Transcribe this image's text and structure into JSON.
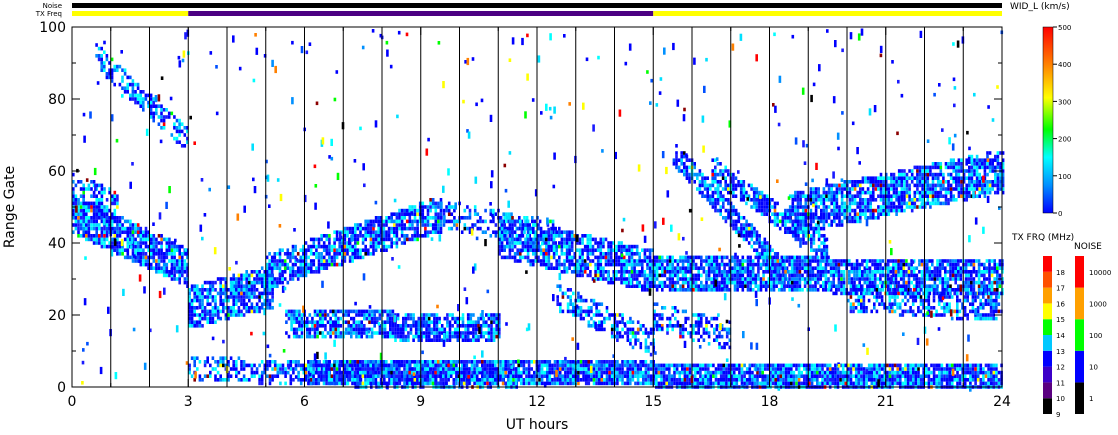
{
  "chart_data": {
    "type": "heatmap",
    "xlabel": "UT hours",
    "ylabel": "Range Gate",
    "xlim": [
      0,
      24
    ],
    "ylim": [
      0,
      100
    ],
    "x_ticks": [
      "0",
      "3",
      "6",
      "9",
      "12",
      "15",
      "18",
      "21",
      "24"
    ],
    "y_ticks": [
      "0",
      "20",
      "40",
      "60",
      "80",
      "100"
    ],
    "status_rows": [
      {
        "label": "Noise",
        "segments": [
          {
            "start": 0,
            "end": 24,
            "color": "#000000"
          }
        ]
      },
      {
        "label": "TX Freq",
        "segments": [
          {
            "start": 0,
            "end": 3,
            "color": "#ffff00"
          },
          {
            "start": 3,
            "end": 15,
            "color": "#4b0082"
          },
          {
            "start": 15,
            "end": 24,
            "color": "#ffff00"
          }
        ]
      }
    ],
    "main_colorbar": {
      "label": "WID_L (km/s)",
      "ticks": [
        "0",
        "100",
        "200",
        "300",
        "400",
        "500"
      ],
      "stops": [
        "#0000ff",
        "#0090ff",
        "#00ffff",
        "#00ff00",
        "#ffff00",
        "#ff8000",
        "#ff0000"
      ]
    },
    "freq_colorbar": {
      "label": "TX FRQ (MHz)",
      "ticks": [
        "9",
        "10",
        "11",
        "12",
        "13",
        "14",
        "15",
        "16",
        "17",
        "18"
      ],
      "colors": [
        "#000000",
        "#5a0080",
        "#3c00c8",
        "#0000ff",
        "#00c8ff",
        "#00ff00",
        "#ffff00",
        "#ffa000",
        "#ff5000",
        "#ff0000"
      ]
    },
    "noise_colorbar": {
      "label": "NOISE",
      "ticks": [
        "1",
        "10",
        "100",
        "1000",
        "10000"
      ],
      "colors": [
        "#000000",
        "#0000ff",
        "#00ff00",
        "#ffa000",
        "#ff0000"
      ]
    },
    "bands": [
      {
        "t0": 0.0,
        "t1": 3.0,
        "g0": 48,
        "g1": 33,
        "h": 9,
        "d": 0.85
      },
      {
        "t0": 0.0,
        "t1": 1.2,
        "g0": 55,
        "g1": 50,
        "h": 7,
        "d": 0.55
      },
      {
        "t0": 0.6,
        "t1": 3.0,
        "g0": 92,
        "g1": 68,
        "h": 5,
        "d": 0.55
      },
      {
        "t0": 3.0,
        "t1": 5.2,
        "g0": 22,
        "g1": 28,
        "h": 10,
        "d": 0.85
      },
      {
        "t0": 5.0,
        "t1": 9.5,
        "g0": 32,
        "g1": 48,
        "h": 8,
        "d": 0.8
      },
      {
        "t0": 9.5,
        "t1": 12.5,
        "g0": 48,
        "g1": 42,
        "h": 6,
        "d": 0.45
      },
      {
        "t0": 5.5,
        "t1": 11.0,
        "g0": 18,
        "g1": 16,
        "h": 6,
        "d": 0.8
      },
      {
        "t0": 3.0,
        "t1": 11.5,
        "g0": 5,
        "g1": 2,
        "h": 5,
        "d": 0.55
      },
      {
        "t0": 6.0,
        "t1": 24.0,
        "g0": 4,
        "g1": 3,
        "h": 5,
        "d": 0.9
      },
      {
        "t0": 11.0,
        "t1": 15.0,
        "g0": 42,
        "g1": 32,
        "h": 10,
        "d": 0.75
      },
      {
        "t0": 15.0,
        "t1": 24.0,
        "g0": 32,
        "g1": 30,
        "h": 8,
        "d": 0.85
      },
      {
        "t0": 15.5,
        "t1": 18.5,
        "g0": 65,
        "g1": 30,
        "h": 5,
        "d": 0.75
      },
      {
        "t0": 16.5,
        "t1": 19.5,
        "g0": 60,
        "g1": 38,
        "h": 5,
        "d": 0.7
      },
      {
        "t0": 18.5,
        "t1": 24.0,
        "g0": 48,
        "g1": 60,
        "h": 10,
        "d": 0.8
      },
      {
        "t0": 20.0,
        "t1": 24.0,
        "g0": 25,
        "g1": 22,
        "h": 6,
        "d": 0.55
      },
      {
        "t0": 12.5,
        "t1": 15.0,
        "g0": 25,
        "g1": 12,
        "h": 6,
        "d": 0.55
      },
      {
        "t0": 15.0,
        "t1": 17.0,
        "g0": 20,
        "g1": 14,
        "h": 6,
        "d": 0.5
      }
    ]
  }
}
